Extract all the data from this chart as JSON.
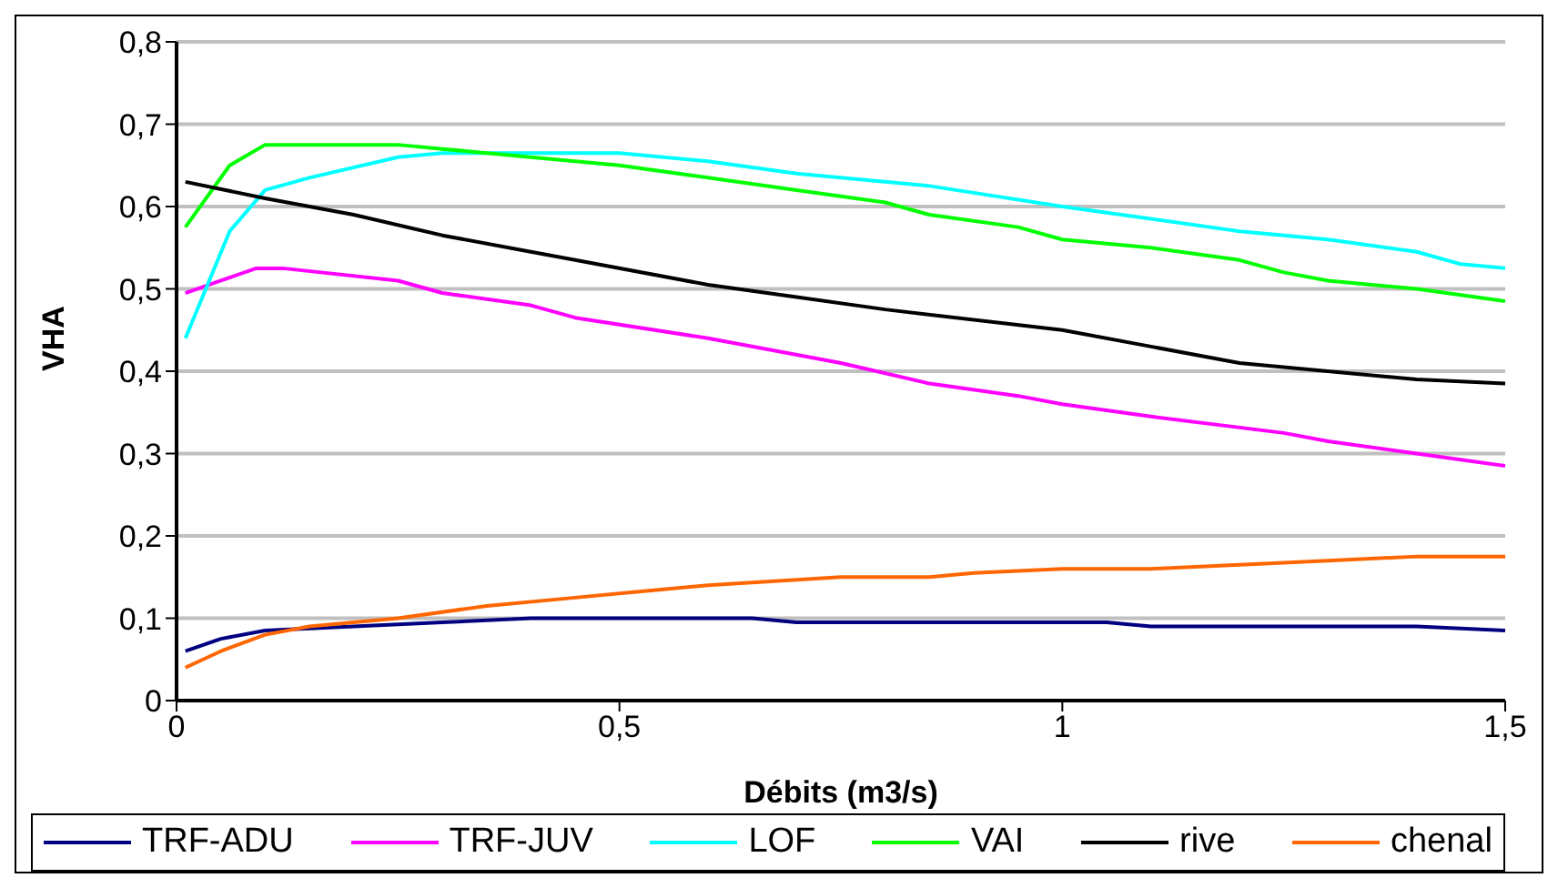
{
  "chart_data": {
    "type": "line",
    "xlabel": "Débits (m3/s)",
    "ylabel": "VHA",
    "xlim": [
      0,
      1.5
    ],
    "xticks": [
      0,
      {
        "value": 0.5,
        "label": "0,5"
      },
      1,
      {
        "value": 1.5,
        "label": "1,5"
      }
    ],
    "ylim": [
      0,
      0.8
    ],
    "yticks": [
      0,
      {
        "value": 0.1,
        "label": "0,1"
      },
      {
        "value": 0.2,
        "label": "0,2"
      },
      {
        "value": 0.3,
        "label": "0,3"
      },
      {
        "value": 0.4,
        "label": "0,4"
      },
      {
        "value": 0.5,
        "label": "0,5"
      },
      {
        "value": 0.6,
        "label": "0,6"
      },
      {
        "value": 0.7,
        "label": "0,7"
      },
      {
        "value": 0.8,
        "label": "0,8"
      }
    ],
    "grid": "y",
    "legend": "bottom",
    "marker": "none",
    "line_style": "solid",
    "series": [
      {
        "name": "TRF-ADU",
        "color": "#000080",
        "x": [
          0.01,
          0.05,
          0.1,
          0.2,
          0.3,
          0.4,
          0.65,
          0.7,
          1.05,
          1.1,
          1.4,
          1.5
        ],
        "values": [
          0.06,
          0.075,
          0.085,
          0.09,
          0.095,
          0.1,
          0.1,
          0.095,
          0.095,
          0.09,
          0.09,
          0.085
        ]
      },
      {
        "name": "TRF-JUV",
        "color": "#ff00ff",
        "x": [
          0.01,
          0.05,
          0.09,
          0.12,
          0.25,
          0.3,
          0.4,
          0.45,
          0.6,
          0.75,
          0.85,
          0.95,
          1.0,
          1.1,
          1.25,
          1.3,
          1.4,
          1.5
        ],
        "values": [
          0.495,
          0.51,
          0.525,
          0.525,
          0.51,
          0.495,
          0.48,
          0.465,
          0.44,
          0.41,
          0.385,
          0.37,
          0.36,
          0.345,
          0.325,
          0.315,
          0.3,
          0.285
        ]
      },
      {
        "name": "LOF",
        "color": "#00ffff",
        "x": [
          0.01,
          0.06,
          0.1,
          0.15,
          0.25,
          0.3,
          0.5,
          0.6,
          0.7,
          0.85,
          1.0,
          1.1,
          1.2,
          1.3,
          1.4,
          1.45,
          1.5
        ],
        "values": [
          0.44,
          0.57,
          0.62,
          0.635,
          0.66,
          0.665,
          0.665,
          0.655,
          0.64,
          0.625,
          0.6,
          0.585,
          0.57,
          0.56,
          0.545,
          0.53,
          0.525
        ]
      },
      {
        "name": "VAI",
        "color": "#00ff00",
        "x": [
          0.01,
          0.06,
          0.1,
          0.25,
          0.3,
          0.4,
          0.5,
          0.6,
          0.7,
          0.8,
          0.85,
          0.95,
          1.0,
          1.1,
          1.2,
          1.25,
          1.3,
          1.4,
          1.5
        ],
        "values": [
          0.575,
          0.65,
          0.675,
          0.675,
          0.67,
          0.66,
          0.65,
          0.635,
          0.62,
          0.605,
          0.59,
          0.575,
          0.56,
          0.55,
          0.535,
          0.52,
          0.51,
          0.5,
          0.485
        ]
      },
      {
        "name": "rive",
        "color": "#000000",
        "x": [
          0.01,
          0.1,
          0.2,
          0.3,
          0.4,
          0.45,
          0.6,
          0.7,
          0.8,
          1.0,
          1.1,
          1.2,
          1.4,
          1.5
        ],
        "values": [
          0.63,
          0.61,
          0.59,
          0.565,
          0.545,
          0.535,
          0.505,
          0.49,
          0.475,
          0.45,
          0.43,
          0.41,
          0.39,
          0.385
        ]
      },
      {
        "name": "chenal",
        "color": "#ff6600",
        "x": [
          0.01,
          0.05,
          0.1,
          0.15,
          0.25,
          0.35,
          0.45,
          0.5,
          0.6,
          0.75,
          0.85,
          0.9,
          1.0,
          1.1,
          1.2,
          1.3,
          1.4,
          1.5
        ],
        "values": [
          0.04,
          0.06,
          0.08,
          0.09,
          0.1,
          0.115,
          0.125,
          0.13,
          0.14,
          0.15,
          0.15,
          0.155,
          0.16,
          0.16,
          0.165,
          0.17,
          0.175,
          0.175
        ]
      }
    ]
  }
}
